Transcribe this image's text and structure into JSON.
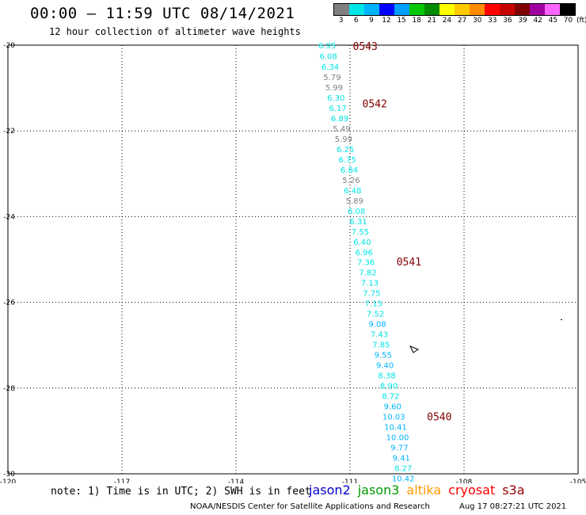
{
  "header": {
    "title": "00:00 – 11:59 UTC 08/14/2021",
    "subtitle": "12 hour collection of altimeter wave heights"
  },
  "color_scale": {
    "labels": [
      "3",
      "6",
      "9",
      "12",
      "15",
      "18",
      "21",
      "24",
      "27",
      "30",
      "33",
      "36",
      "39",
      "42",
      "45",
      "70"
    ],
    "unit": "(ft)",
    "colors": [
      "#808080",
      "#00e5e5",
      "#00b3ff",
      "#0000ff",
      "#00a0ff",
      "#00c800",
      "#008c00",
      "#ffff00",
      "#ffc800",
      "#ff8c00",
      "#ff0000",
      "#c80000",
      "#800000",
      "#a000a0",
      "#ff66ff",
      "#000000"
    ]
  },
  "map": {
    "lon_ticks": [
      "-120",
      "-117",
      "-114",
      "-111",
      "-108",
      "-105"
    ],
    "lat_ticks": [
      "-20",
      "-22",
      "-24",
      "-26",
      "-28",
      "-30"
    ],
    "lon_range": [
      -120,
      -105
    ],
    "lat_range": [
      -30,
      -20
    ]
  },
  "track": {
    "satellite": "jason3",
    "points": [
      {
        "v": "6.95",
        "lon": -111.6,
        "lat": -20.0
      },
      {
        "v": "6.08",
        "lon": -111.57,
        "lat": -20.25
      },
      {
        "v": "6.34",
        "lon": -111.52,
        "lat": -20.5
      },
      {
        "v": "5.79",
        "lon": -111.47,
        "lat": -20.74
      },
      {
        "v": "5.99",
        "lon": -111.42,
        "lat": -20.98
      },
      {
        "v": "6.30",
        "lon": -111.37,
        "lat": -21.22
      },
      {
        "v": "6.17",
        "lon": -111.32,
        "lat": -21.46
      },
      {
        "v": "6.89",
        "lon": -111.27,
        "lat": -21.7
      },
      {
        "v": "5.49",
        "lon": -111.22,
        "lat": -21.94
      },
      {
        "v": "5.99",
        "lon": -111.17,
        "lat": -22.18
      },
      {
        "v": "6.25",
        "lon": -111.12,
        "lat": -22.42
      },
      {
        "v": "6.75",
        "lon": -111.07,
        "lat": -22.66
      },
      {
        "v": "6.84",
        "lon": -111.02,
        "lat": -22.9
      },
      {
        "v": "5.26",
        "lon": -110.97,
        "lat": -23.14
      },
      {
        "v": "6.48",
        "lon": -110.93,
        "lat": -23.38
      },
      {
        "v": "5.89",
        "lon": -110.88,
        "lat": -23.62
      },
      {
        "v": "6.08",
        "lon": -110.83,
        "lat": -23.86
      },
      {
        "v": "6.31",
        "lon": -110.78,
        "lat": -24.1
      },
      {
        "v": "7.55",
        "lon": -110.73,
        "lat": -24.34
      },
      {
        "v": "6.40",
        "lon": -110.68,
        "lat": -24.58
      },
      {
        "v": "6.96",
        "lon": -110.63,
        "lat": -24.82
      },
      {
        "v": "7.36",
        "lon": -110.58,
        "lat": -25.06
      },
      {
        "v": "7.82",
        "lon": -110.53,
        "lat": -25.3
      },
      {
        "v": "7.13",
        "lon": -110.48,
        "lat": -25.54
      },
      {
        "v": "7.75",
        "lon": -110.43,
        "lat": -25.78
      },
      {
        "v": "7.15",
        "lon": -110.38,
        "lat": -26.02
      },
      {
        "v": "7.52",
        "lon": -110.33,
        "lat": -26.26
      },
      {
        "v": "9.08",
        "lon": -110.28,
        "lat": -26.5
      },
      {
        "v": "7.43",
        "lon": -110.23,
        "lat": -26.74
      },
      {
        "v": "7.85",
        "lon": -110.18,
        "lat": -26.98
      },
      {
        "v": "9.55",
        "lon": -110.13,
        "lat": -27.22
      },
      {
        "v": "9.40",
        "lon": -110.08,
        "lat": -27.46
      },
      {
        "v": "8.38",
        "lon": -110.03,
        "lat": -27.7
      },
      {
        "v": "8.90",
        "lon": -109.98,
        "lat": -27.94
      },
      {
        "v": "8.72",
        "lon": -109.93,
        "lat": -28.18
      },
      {
        "v": "9.60",
        "lon": -109.88,
        "lat": -28.42
      },
      {
        "v": "10.03",
        "lon": -109.85,
        "lat": -28.66
      },
      {
        "v": "10.41",
        "lon": -109.8,
        "lat": -28.9
      },
      {
        "v": "10.00",
        "lon": -109.75,
        "lat": -29.14
      },
      {
        "v": "9.77",
        "lon": -109.7,
        "lat": -29.38
      },
      {
        "v": "9.41",
        "lon": -109.65,
        "lat": -29.62
      },
      {
        "v": "8.27",
        "lon": -109.6,
        "lat": -29.86
      },
      {
        "v": "10.42",
        "lon": -109.6,
        "lat": -30.1
      }
    ],
    "pass_times": [
      {
        "label": "0543",
        "lon": -110.6,
        "lat": -20.02
      },
      {
        "label": "0542",
        "lon": -110.35,
        "lat": -21.36
      },
      {
        "label": "0541",
        "lon": -109.45,
        "lat": -25.05
      },
      {
        "label": "0540",
        "lon": -108.65,
        "lat": -28.66
      }
    ]
  },
  "footer": {
    "note": "note: 1) Time is in UTC; 2) SWH is in feet",
    "satellites": [
      {
        "name": "jason2",
        "color": "#0000cc"
      },
      {
        "name": "jason3",
        "color": "#009900"
      },
      {
        "name": "altika",
        "color": "#ff9900"
      },
      {
        "name": "cryosat",
        "color": "#ff0000"
      },
      {
        "name": "s3a",
        "color": "#990000"
      }
    ],
    "credit": "NOAA/NESDIS Center for Satellite Applications and Research",
    "timestamp": "Aug 17 08:27:21 UTC 2021"
  }
}
